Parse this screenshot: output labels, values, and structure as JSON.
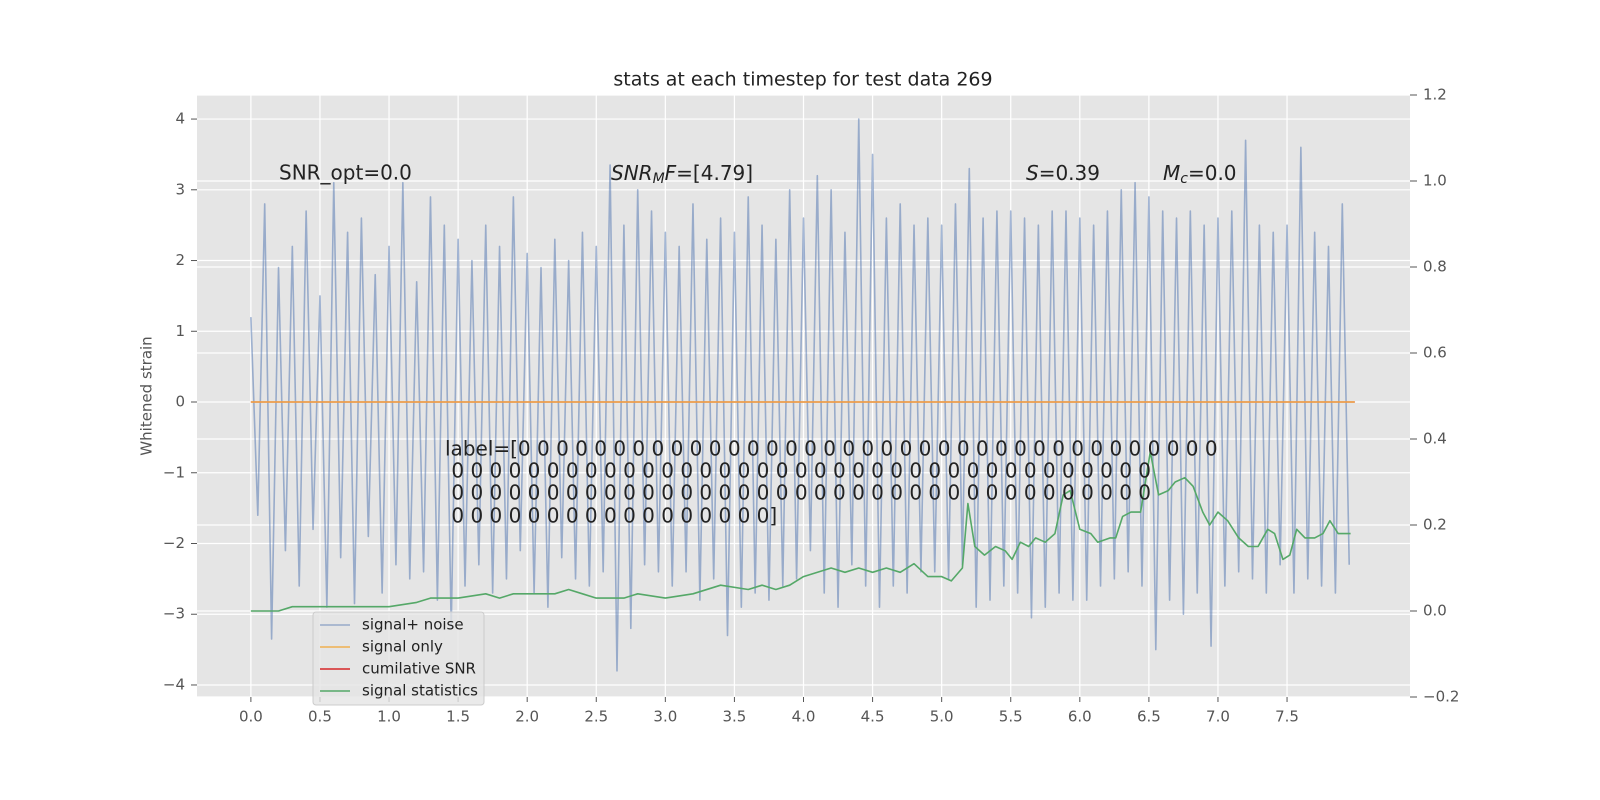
{
  "chart_data": {
    "type": "line",
    "title": "stats at each timestep for test data 269",
    "ylabel": "Whitened strain",
    "xlim": [
      -0.39,
      8.39
    ],
    "xticks": [
      {
        "value": 0,
        "label": "0.0"
      },
      0.5,
      {
        "value": 1,
        "label": "1.0"
      },
      1.5,
      {
        "value": 2,
        "label": "2.0"
      },
      2.5,
      {
        "value": 3,
        "label": "3.0"
      },
      3.5,
      {
        "value": 4,
        "label": "4.0"
      },
      4.5,
      {
        "value": 5,
        "label": "5.0"
      },
      5.5,
      {
        "value": 6,
        "label": "6.0"
      },
      6.5,
      {
        "value": 7,
        "label": "7.0"
      },
      7.5
    ],
    "ylim": [
      -4.17,
      4.34
    ],
    "yticks": [
      {
        "value": -4,
        "label": "−4"
      },
      {
        "value": -3,
        "label": "−3"
      },
      {
        "value": -2,
        "label": "−2"
      },
      {
        "value": -1,
        "label": "−1"
      },
      0,
      1,
      2,
      3,
      4
    ],
    "y2lim": [
      -0.2,
      1.2
    ],
    "y2ticks": [
      {
        "value": -0.2,
        "label": "−0.2"
      },
      {
        "value": 0,
        "label": "0.0"
      },
      0.2,
      0.4,
      0.6,
      0.8,
      {
        "value": 1,
        "label": "1.0"
      },
      1.2
    ],
    "grid": true,
    "legend": "lower left",
    "series": [
      {
        "name": "signal+ noise",
        "color": "#4c72b0",
        "alpha": 0.5,
        "x": [
          0,
          0.05,
          0.1,
          0.15,
          0.2,
          0.25,
          0.3,
          0.35,
          0.4,
          0.45,
          0.5,
          0.55,
          0.6,
          0.65,
          0.7,
          0.75,
          0.8,
          0.85,
          0.9,
          0.95,
          1,
          1.05,
          1.1,
          1.15,
          1.2,
          1.25,
          1.3,
          1.35,
          1.4,
          1.45,
          1.5,
          1.55,
          1.6,
          1.65,
          1.7,
          1.75,
          1.8,
          1.85,
          1.9,
          1.95,
          2,
          2.05,
          2.1,
          2.15,
          2.2,
          2.25,
          2.3,
          2.35,
          2.4,
          2.45,
          2.5,
          2.55,
          2.6,
          2.65,
          2.7,
          2.75,
          2.8,
          2.85,
          2.9,
          2.95,
          3,
          3.05,
          3.1,
          3.15,
          3.2,
          3.25,
          3.3,
          3.35,
          3.4,
          3.45,
          3.5,
          3.55,
          3.6,
          3.65,
          3.7,
          3.75,
          3.8,
          3.85,
          3.9,
          3.95,
          4,
          4.05,
          4.1,
          4.15,
          4.2,
          4.25,
          4.3,
          4.35,
          4.4,
          4.45,
          4.5,
          4.55,
          4.6,
          4.65,
          4.7,
          4.75,
          4.8,
          4.85,
          4.9,
          4.95,
          5,
          5.05,
          5.1,
          5.15,
          5.2,
          5.25,
          5.3,
          5.35,
          5.4,
          5.45,
          5.5,
          5.55,
          5.6,
          5.65,
          5.7,
          5.75,
          5.8,
          5.85,
          5.9,
          5.95,
          6,
          6.05,
          6.1,
          6.15,
          6.2,
          6.25,
          6.3,
          6.35,
          6.4,
          6.45,
          6.5,
          6.55,
          6.6,
          6.65,
          6.7,
          6.75,
          6.8,
          6.85,
          6.9,
          6.95,
          7,
          7.05,
          7.1,
          7.15,
          7.2,
          7.25,
          7.3,
          7.35,
          7.4,
          7.45,
          7.5,
          7.55,
          7.6,
          7.65,
          7.7,
          7.75,
          7.8,
          7.85,
          7.9,
          7.95
        ],
        "values": [
          1.2,
          -1.6,
          2.8,
          -3.35,
          1.9,
          -2.1,
          2.2,
          -2.6,
          2.7,
          -1.8,
          1.5,
          -2.9,
          3.1,
          -2.2,
          2.4,
          -2.85,
          2.6,
          -1.9,
          1.8,
          -2.7,
          2.2,
          -2.3,
          3.1,
          -2.5,
          1.7,
          -2.4,
          2.9,
          -2.8,
          2.5,
          -3.2,
          2.3,
          -2.6,
          2.0,
          -2.3,
          2.5,
          -2.7,
          2.2,
          -2.5,
          2.9,
          -2.1,
          2.1,
          -2.7,
          1.9,
          -2.9,
          2.3,
          -2.2,
          2.0,
          -2.5,
          2.4,
          -2.6,
          2.2,
          -2.4,
          3.35,
          -3.8,
          2.5,
          -3.2,
          3.0,
          -2.3,
          2.7,
          -2.4,
          2.4,
          -2.6,
          2.2,
          -2.4,
          2.8,
          -2.8,
          2.3,
          -2.5,
          2.6,
          -3.3,
          2.4,
          -2.9,
          2.9,
          -2.7,
          2.5,
          -2.8,
          2.3,
          -2.6,
          3.0,
          -2.5,
          2.6,
          -2.1,
          3.2,
          -2.7,
          3.0,
          -2.9,
          2.4,
          -2.3,
          4.0,
          -2.6,
          3.5,
          -2.9,
          2.6,
          -2.6,
          2.8,
          -2.7,
          2.5,
          -2.4,
          2.6,
          -2.4,
          2.5,
          -2.5,
          2.8,
          -2.3,
          3.3,
          -2.9,
          2.6,
          -2.8,
          2.7,
          -2.6,
          2.7,
          -2.7,
          2.6,
          -3.05,
          2.5,
          -2.9,
          2.7,
          -2.7,
          2.7,
          -2.8,
          2.6,
          -2.8,
          2.5,
          -2.6,
          2.7,
          -2.5,
          3.0,
          -2.4,
          3.1,
          -2.6,
          2.9,
          -3.5,
          2.7,
          -2.8,
          2.6,
          -3.0,
          2.7,
          -2.7,
          2.5,
          -3.45,
          2.6,
          -2.6,
          2.7,
          -2.4,
          3.7,
          -2.5,
          2.5,
          -2.7,
          2.4,
          -2.3,
          2.5,
          -2.7,
          3.6,
          -2.5,
          2.4,
          -2.6,
          2.2,
          -2.7,
          2.8,
          -2.3
        ]
      },
      {
        "name": "cumilative SNR",
        "color": "#d62728",
        "x": [
          0,
          7.99
        ],
        "values": [
          0,
          0
        ]
      },
      {
        "name": "signal only",
        "color": "#f0b050",
        "x": [
          0,
          7.99
        ],
        "values": [
          0,
          0
        ]
      },
      {
        "name": "signal statistics",
        "color": "#55a868",
        "axis": "y2",
        "x": [
          0,
          0.2,
          0.3,
          0.5,
          0.6,
          0.7,
          0.8,
          1.0,
          1.2,
          1.3,
          1.5,
          1.7,
          1.8,
          1.9,
          2.0,
          2.2,
          2.3,
          2.4,
          2.5,
          2.7,
          2.8,
          3.0,
          3.2,
          3.4,
          3.6,
          3.7,
          3.8,
          3.9,
          4.0,
          4.2,
          4.3,
          4.4,
          4.5,
          4.6,
          4.7,
          4.8,
          4.9,
          5.0,
          5.07,
          5.15,
          5.19,
          5.24,
          5.31,
          5.39,
          5.46,
          5.51,
          5.57,
          5.63,
          5.68,
          5.75,
          5.82,
          5.88,
          5.93,
          6.0,
          6.08,
          6.13,
          6.22,
          6.26,
          6.31,
          6.37,
          6.44,
          6.51,
          6.57,
          6.64,
          6.69,
          6.76,
          6.82,
          6.89,
          6.94,
          7.0,
          7.07,
          7.15,
          7.22,
          7.29,
          7.36,
          7.41,
          7.47,
          7.52,
          7.57,
          7.63,
          7.7,
          7.76,
          7.81,
          7.87,
          7.96
        ],
        "values": [
          0,
          0,
          0.01,
          0.01,
          0.01,
          0.01,
          0.01,
          0.01,
          0.02,
          0.03,
          0.03,
          0.04,
          0.03,
          0.04,
          0.04,
          0.04,
          0.05,
          0.04,
          0.03,
          0.03,
          0.04,
          0.03,
          0.04,
          0.06,
          0.05,
          0.06,
          0.05,
          0.06,
          0.08,
          0.1,
          0.09,
          0.1,
          0.09,
          0.1,
          0.09,
          0.11,
          0.08,
          0.08,
          0.07,
          0.1,
          0.25,
          0.15,
          0.13,
          0.15,
          0.14,
          0.12,
          0.16,
          0.15,
          0.17,
          0.16,
          0.18,
          0.27,
          0.28,
          0.19,
          0.18,
          0.16,
          0.17,
          0.17,
          0.22,
          0.23,
          0.23,
          0.37,
          0.27,
          0.28,
          0.3,
          0.31,
          0.29,
          0.23,
          0.2,
          0.23,
          0.21,
          0.17,
          0.15,
          0.15,
          0.19,
          0.18,
          0.12,
          0.13,
          0.19,
          0.17,
          0.17,
          0.18,
          0.21,
          0.18,
          0.18
        ]
      }
    ],
    "annotations": [
      {
        "text": "SNR_opt=0.0"
      },
      {
        "parts": [
          "SNR",
          "M",
          "F",
          "=[4.79]"
        ]
      },
      {
        "parts": [
          "S",
          "=0.39"
        ]
      },
      {
        "parts": [
          "M",
          "c",
          "=0.0"
        ]
      }
    ],
    "label_text": [
      "label=[0 0 0 0 0 0 0 0 0 0 0 0 0 0 0 0 0 0 0 0 0 0 0 0 0 0 0 0 0 0 0 0 0 0 0 0 0",
      " 0 0 0 0 0 0 0 0 0 0 0 0 0 0 0 0 0 0 0 0 0 0 0 0 0 0 0 0 0 0 0 0 0 0 0 0 0",
      " 0 0 0 0 0 0 0 0 0 0 0 0 0 0 0 0 0 0 0 0 0 0 0 0 0 0 0 0 0 0 0 0 0 0 0 0 0",
      " 0 0 0 0 0 0 0 0 0 0 0 0 0 0 0 0 0]"
    ]
  }
}
